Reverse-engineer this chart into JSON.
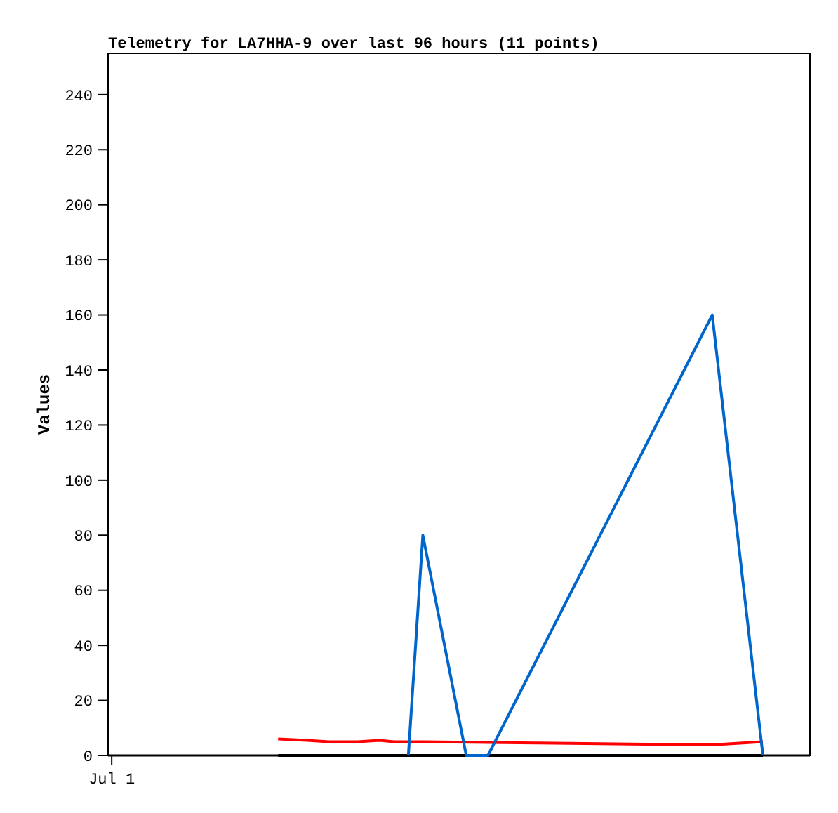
{
  "chart_data": {
    "type": "line",
    "title": "Telemetry for LA7HHA-9 over last 96 hours (11 points)",
    "ylabel": "Values",
    "categories": [
      "Jul 1",
      null,
      null,
      null,
      null,
      null,
      null,
      null,
      null,
      null,
      null,
      null,
      null,
      null,
      null,
      null,
      null,
      null,
      null,
      null,
      null,
      null,
      null,
      null,
      null,
      null,
      null,
      null,
      null,
      null,
      null,
      null,
      null,
      null,
      null,
      null,
      null,
      null,
      null,
      null,
      null,
      null,
      null,
      null,
      null,
      null,
      null,
      null,
      null,
      null,
      null,
      null,
      null,
      null,
      null,
      null,
      null,
      null,
      null,
      null,
      null,
      null,
      null,
      null,
      null,
      null,
      null,
      null,
      null,
      null,
      null,
      null,
      null,
      null,
      null,
      null,
      null,
      null,
      null,
      null,
      null,
      null,
      null,
      null,
      null,
      null,
      null,
      null,
      null,
      null,
      null,
      null,
      null,
      null,
      null,
      null,
      null
    ],
    "ylim": [
      0,
      255
    ],
    "yticks": [
      0,
      20,
      40,
      60,
      80,
      100,
      120,
      140,
      160,
      180,
      200,
      220,
      240
    ],
    "marker": "none",
    "line_style": "solid",
    "series": [
      {
        "color": "#ff0000",
        "values": [
          null,
          null,
          null,
          null,
          null,
          null,
          null,
          null,
          null,
          null,
          null,
          null,
          null,
          null,
          null,
          null,
          null,
          null,
          null,
          null,
          null,
          null,
          null,
          6,
          null,
          null,
          null,
          5.5,
          null,
          null,
          5,
          null,
          null,
          null,
          5,
          null,
          null,
          5.5,
          null,
          5,
          null,
          null,
          null,
          5,
          null,
          null,
          null,
          null,
          null,
          null,
          null,
          null,
          null,
          null,
          null,
          null,
          null,
          null,
          null,
          4.5,
          null,
          null,
          null,
          null,
          null,
          null,
          null,
          null,
          null,
          null,
          null,
          null,
          null,
          null,
          null,
          null,
          4,
          null,
          null,
          null,
          null,
          null,
          null,
          null,
          4,
          null,
          null,
          null,
          null,
          null,
          5,
          null,
          null,
          null,
          null,
          null,
          null
        ]
      },
      {
        "color": "#000000",
        "values": [
          null,
          null,
          null,
          null,
          null,
          null,
          null,
          null,
          null,
          null,
          null,
          null,
          null,
          null,
          null,
          null,
          null,
          null,
          null,
          null,
          null,
          null,
          null,
          0,
          null,
          null,
          null,
          null,
          null,
          null,
          null,
          null,
          null,
          null,
          null,
          null,
          null,
          null,
          null,
          null,
          null,
          null,
          null,
          null,
          null,
          null,
          null,
          null,
          null,
          null,
          null,
          null,
          null,
          null,
          null,
          null,
          null,
          null,
          null,
          null,
          null,
          null,
          null,
          null,
          null,
          null,
          null,
          null,
          null,
          null,
          null,
          null,
          null,
          null,
          null,
          null,
          null,
          null,
          null,
          null,
          null,
          null,
          null,
          null,
          null,
          null,
          null,
          null,
          null,
          null,
          0,
          null,
          null,
          null,
          null,
          null,
          null
        ]
      },
      {
        "color": "#0066cc",
        "values": [
          null,
          null,
          null,
          null,
          null,
          null,
          null,
          null,
          null,
          null,
          null,
          null,
          null,
          null,
          null,
          null,
          null,
          null,
          null,
          null,
          null,
          null,
          null,
          null,
          null,
          null,
          null,
          null,
          null,
          null,
          null,
          null,
          null,
          null,
          null,
          null,
          null,
          null,
          null,
          null,
          null,
          0,
          null,
          80,
          null,
          null,
          null,
          null,
          null,
          0,
          null,
          null,
          0,
          null,
          null,
          null,
          null,
          null,
          null,
          null,
          null,
          null,
          null,
          null,
          null,
          null,
          null,
          null,
          null,
          null,
          null,
          null,
          null,
          null,
          null,
          null,
          null,
          null,
          null,
          null,
          null,
          null,
          null,
          160,
          null,
          null,
          null,
          null,
          null,
          null,
          0,
          null,
          null,
          null,
          null,
          null,
          null
        ]
      }
    ]
  }
}
